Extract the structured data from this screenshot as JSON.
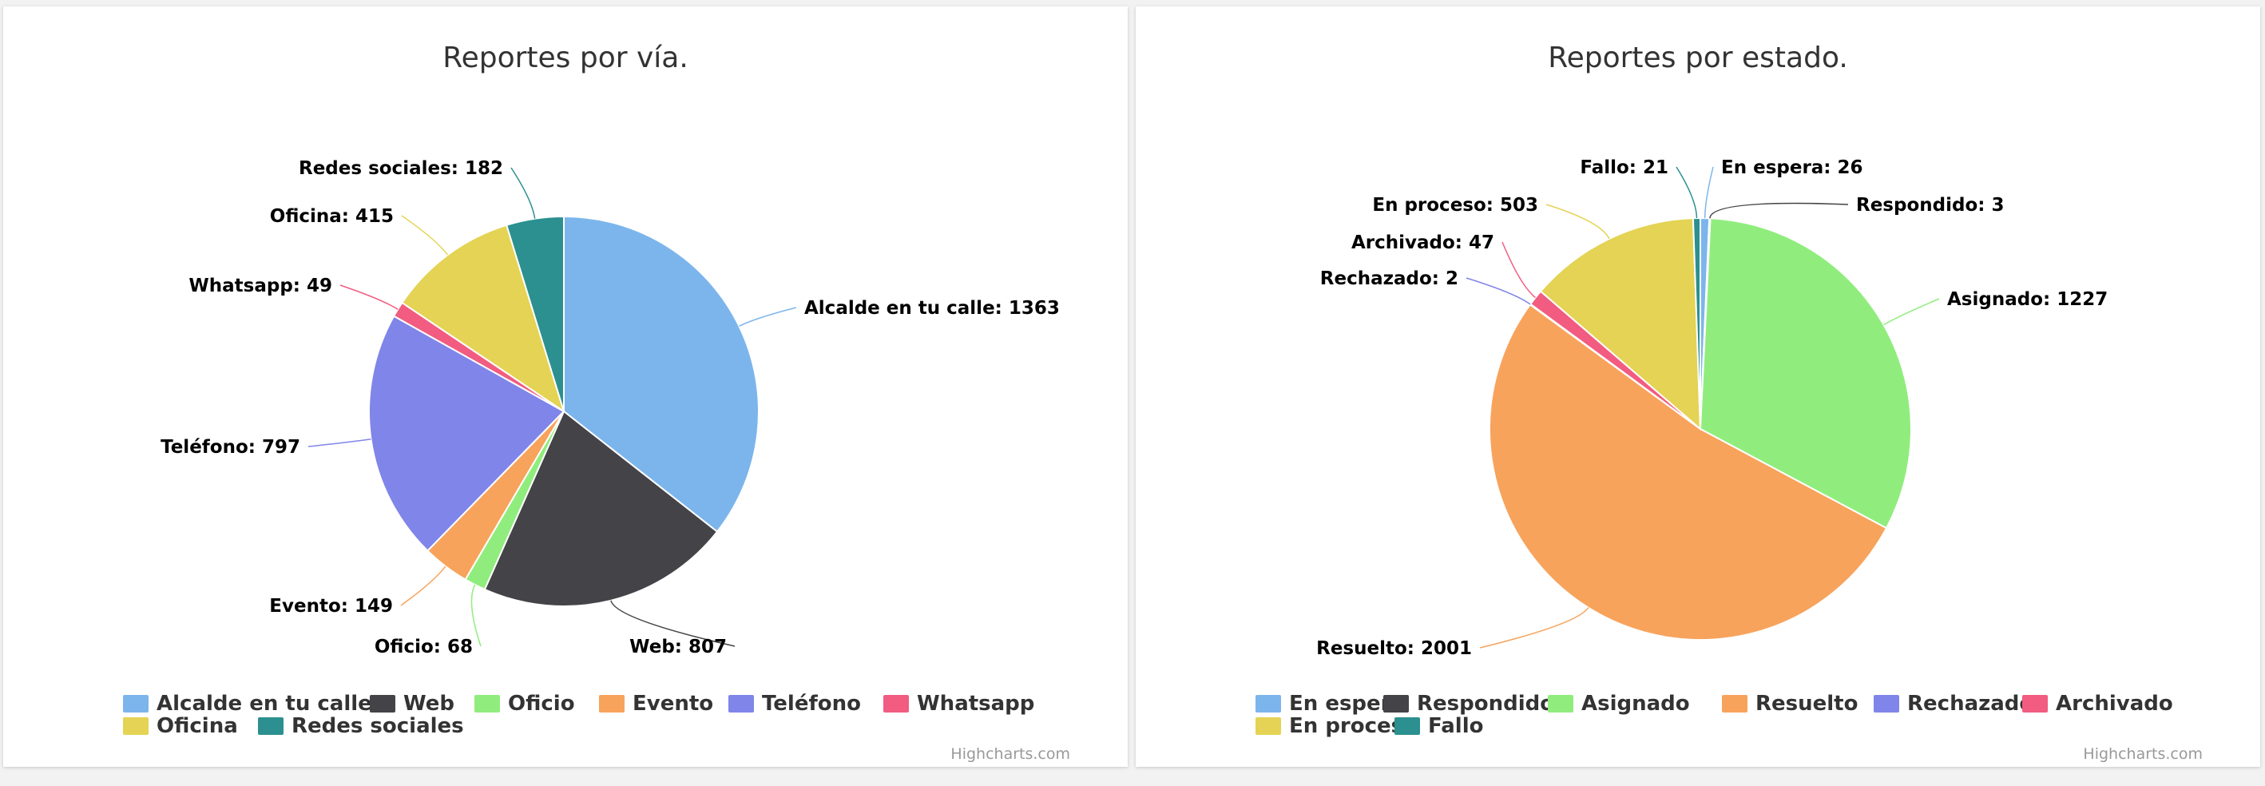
{
  "chart_data": [
    {
      "type": "pie",
      "title": "Reportes por vía.",
      "categories": [
        "Alcalde en tu calle",
        "Web",
        "Oficio",
        "Evento",
        "Teléfono",
        "Whatsapp",
        "Oficina",
        "Redes sociales"
      ],
      "values": [
        1363,
        807,
        68,
        149,
        797,
        49,
        415,
        182
      ],
      "point_labels": [
        "Alcalde en tu calle: 1363",
        "Web: 807",
        "Oficio: 68",
        "Evento: 149",
        "Teléfono: 797",
        "Whatsapp: 49",
        "Oficina: 415",
        "Redes sociales: 182"
      ],
      "colors": [
        "#7cb5ec",
        "#434348",
        "#90ed7d",
        "#f7a35c",
        "#8085e9",
        "#f15c80",
        "#e4d354",
        "#2b908f"
      ],
      "legend": "bottom",
      "credits": "Highcharts.com"
    },
    {
      "type": "pie",
      "title": "Reportes por estado.",
      "categories": [
        "En espera",
        "Respondido",
        "Asignado",
        "Resuelto",
        "Rechazado",
        "Archivado",
        "En proceso",
        "Fallo"
      ],
      "values": [
        26,
        3,
        1227,
        2001,
        2,
        47,
        503,
        21
      ],
      "point_labels": [
        "En espera: 26",
        "Respondido: 3",
        "Asignado: 1227",
        "Resuelto: 2001",
        "Rechazado: 2",
        "Archivado: 47",
        "En proceso: 503",
        "Fallo: 21"
      ],
      "colors": [
        "#7cb5ec",
        "#434348",
        "#90ed7d",
        "#f7a35c",
        "#8085e9",
        "#f15c80",
        "#e4d354",
        "#2b908f"
      ],
      "legend": "bottom",
      "credits": "Highcharts.com"
    }
  ]
}
